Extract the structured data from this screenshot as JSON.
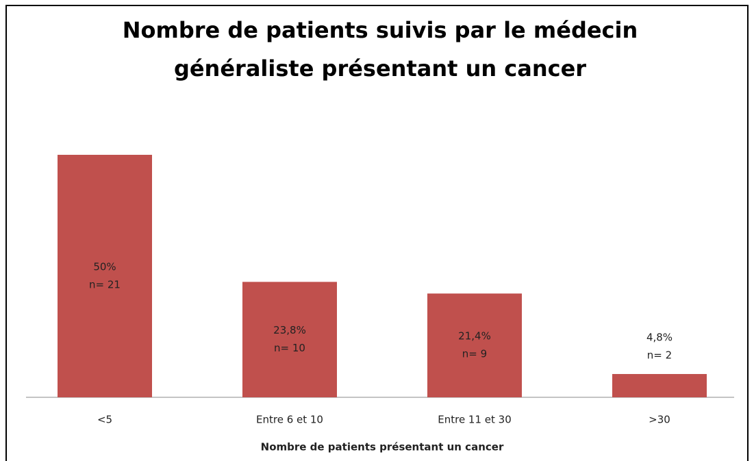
{
  "chart_data": {
    "type": "bar",
    "title": "Nombre de patients suivis par le médecin",
    "title_line2": "généraliste présentant un cancer",
    "x_label": "Nombre de patients présentant un cancer",
    "categories": [
      "<5",
      "Entre 6 et 10",
      "Entre 11 et 30",
      ">30"
    ],
    "values": [
      50,
      23.8,
      21.4,
      4.8
    ],
    "value_labels": [
      "50%",
      "23,8%",
      "21,4%",
      "4,8%"
    ],
    "n_values": [
      21,
      10,
      9,
      2
    ],
    "n_labels": [
      "n= 21",
      "n= 10",
      "n= 9",
      "n= 2"
    ],
    "color": "#c0504d"
  }
}
